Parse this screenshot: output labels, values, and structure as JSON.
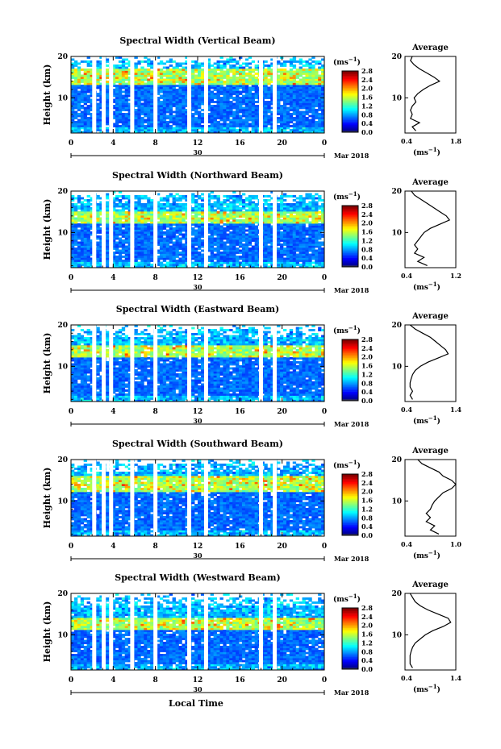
{
  "figure": {
    "xlabel": "Local Time",
    "date_label": "Mar 2018",
    "day_label": "30",
    "colorbar_unit_base": "(ms",
    "colorbar_unit_exp": "−1",
    "colorbar_ticks": [
      "0.0",
      "0.4",
      "0.8",
      "1.2",
      "1.6",
      "2.0",
      "2.4",
      "2.8"
    ],
    "ylabel": "Height (km)",
    "avg_title": "Average",
    "avg_unit_base": "(ms",
    "avg_unit_exp": "−1"
  },
  "chart_data": [
    {
      "type": "heatmap",
      "title": "Spectral Width (Vertical Beam)",
      "xlabel": "Local Time",
      "ylabel": "Height (km)",
      "x_ticks": [
        "0",
        "4",
        "8",
        "12",
        "16",
        "20",
        "0"
      ],
      "xlim": [
        0,
        24
      ],
      "y_ticks": [
        "10",
        "20"
      ],
      "ylim": [
        1.5,
        20
      ],
      "colorbar": {
        "label": "(ms−1)",
        "range": [
          0,
          2.8
        ]
      },
      "data_gaps_hours": [
        2.2,
        3.1,
        3.8,
        5.8,
        8.0,
        11.2,
        12.8,
        18.0,
        19.3
      ],
      "enhanced_band_km": [
        13,
        17
      ],
      "average_profile": {
        "xlim": [
          0.4,
          1.8
        ],
        "x_ticks": [
          "0.4",
          "1.8"
        ],
        "y_ticks": [
          "10",
          "20"
        ],
        "height_km": [
          2,
          3,
          4,
          5,
          6,
          7,
          8,
          9,
          10,
          11,
          12,
          13,
          14,
          15,
          16,
          17,
          18,
          19,
          20
        ],
        "width_ms": [
          0.7,
          0.6,
          0.8,
          0.55,
          0.6,
          0.55,
          0.6,
          0.7,
          0.65,
          0.75,
          0.9,
          1.1,
          1.35,
          1.2,
          1.0,
          0.8,
          0.65,
          0.55,
          0.6
        ]
      }
    },
    {
      "type": "heatmap",
      "title": "Spectral Width (Northward Beam)",
      "xlabel": "Local Time",
      "ylabel": "Height (km)",
      "x_ticks": [
        "0",
        "4",
        "8",
        "12",
        "16",
        "20",
        "0"
      ],
      "xlim": [
        0,
        24
      ],
      "y_ticks": [
        "10",
        "20"
      ],
      "ylim": [
        1.5,
        20
      ],
      "colorbar": {
        "label": "(ms−1)",
        "range": [
          0,
          2.8
        ]
      },
      "data_gaps_hours": [
        2.2,
        3.1,
        3.8,
        5.8,
        8.0,
        11.2,
        12.8,
        18.0,
        19.3
      ],
      "enhanced_band_km": [
        12,
        15
      ],
      "average_profile": {
        "xlim": [
          0.4,
          1.2
        ],
        "x_ticks": [
          "0.4",
          "1.2"
        ],
        "y_ticks": [
          "10",
          "20"
        ],
        "height_km": [
          2,
          3,
          4,
          5,
          6,
          7,
          8,
          9,
          10,
          11,
          12,
          13,
          14,
          15,
          16,
          17,
          18,
          19,
          20
        ],
        "width_ms": [
          0.75,
          0.6,
          0.7,
          0.55,
          0.6,
          0.55,
          0.6,
          0.65,
          0.7,
          0.8,
          0.95,
          1.1,
          1.05,
          0.95,
          0.85,
          0.75,
          0.65,
          0.55,
          0.5
        ]
      }
    },
    {
      "type": "heatmap",
      "title": "Spectral Width (Eastward Beam)",
      "xlabel": "Local Time",
      "ylabel": "Height (km)",
      "x_ticks": [
        "0",
        "4",
        "8",
        "12",
        "16",
        "20",
        "0"
      ],
      "xlim": [
        0,
        24
      ],
      "y_ticks": [
        "10",
        "20"
      ],
      "ylim": [
        1.5,
        20
      ],
      "colorbar": {
        "label": "(ms−1)",
        "range": [
          0,
          2.8
        ]
      },
      "data_gaps_hours": [
        2.2,
        3.1,
        3.8,
        5.8,
        8.0,
        11.2,
        12.8,
        18.0,
        19.3
      ],
      "enhanced_band_km": [
        12,
        15
      ],
      "average_profile": {
        "xlim": [
          0.4,
          1.4
        ],
        "x_ticks": [
          "0.4",
          "1.4"
        ],
        "y_ticks": [
          "10",
          "20"
        ],
        "height_km": [
          2,
          3,
          4,
          5,
          6,
          7,
          8,
          9,
          10,
          11,
          12,
          13,
          14,
          15,
          16,
          17,
          18,
          19,
          20
        ],
        "width_ms": [
          0.55,
          0.5,
          0.55,
          0.5,
          0.5,
          0.52,
          0.55,
          0.6,
          0.7,
          0.85,
          1.05,
          1.25,
          1.2,
          1.1,
          1.0,
          0.9,
          0.75,
          0.6,
          0.5
        ]
      }
    },
    {
      "type": "heatmap",
      "title": "Spectral Width (Southward Beam)",
      "xlabel": "Local Time",
      "ylabel": "Height (km)",
      "x_ticks": [
        "0",
        "4",
        "8",
        "12",
        "16",
        "20",
        "0"
      ],
      "xlim": [
        0,
        24
      ],
      "y_ticks": [
        "10",
        "20"
      ],
      "ylim": [
        1.5,
        20
      ],
      "colorbar": {
        "label": "(ms−1)",
        "range": [
          0,
          2.8
        ]
      },
      "data_gaps_hours": [
        2.2,
        3.1,
        3.8,
        5.8,
        8.0,
        11.2,
        12.8,
        18.0,
        19.3
      ],
      "enhanced_band_km": [
        12,
        16
      ],
      "average_profile": {
        "xlim": [
          0.4,
          1.0
        ],
        "x_ticks": [
          "0.4",
          "1.0"
        ],
        "y_ticks": [
          "10",
          "20"
        ],
        "height_km": [
          2,
          3,
          4,
          5,
          6,
          7,
          8,
          9,
          10,
          11,
          12,
          13,
          14,
          15,
          16,
          17,
          18,
          19,
          20
        ],
        "width_ms": [
          0.8,
          0.7,
          0.75,
          0.65,
          0.7,
          0.65,
          0.7,
          0.72,
          0.75,
          0.8,
          0.85,
          0.95,
          1.0,
          0.95,
          0.85,
          0.8,
          0.7,
          0.6,
          0.55
        ]
      }
    },
    {
      "type": "heatmap",
      "title": "Spectral Width (Westward Beam)",
      "xlabel": "Local Time",
      "ylabel": "Height (km)",
      "x_ticks": [
        "0",
        "4",
        "8",
        "12",
        "16",
        "20",
        "0"
      ],
      "xlim": [
        0,
        24
      ],
      "y_ticks": [
        "10",
        "20"
      ],
      "ylim": [
        1.5,
        20
      ],
      "colorbar": {
        "label": "(ms−1)",
        "range": [
          0,
          2.8
        ]
      },
      "data_gaps_hours": [
        2.2,
        3.1,
        3.8,
        5.8,
        8.0,
        11.2,
        12.8,
        18.0,
        19.3
      ],
      "enhanced_band_km": [
        11,
        14
      ],
      "average_profile": {
        "xlim": [
          0.4,
          1.4
        ],
        "x_ticks": [
          "0.4",
          "1.4"
        ],
        "y_ticks": [
          "10",
          "20"
        ],
        "height_km": [
          2,
          3,
          4,
          5,
          6,
          7,
          8,
          9,
          10,
          11,
          12,
          13,
          14,
          15,
          16,
          17,
          18,
          19,
          20
        ],
        "width_ms": [
          0.55,
          0.5,
          0.5,
          0.5,
          0.52,
          0.55,
          0.6,
          0.7,
          0.8,
          0.95,
          1.15,
          1.3,
          1.25,
          1.05,
          0.85,
          0.7,
          0.6,
          0.55,
          0.5
        ]
      }
    }
  ]
}
